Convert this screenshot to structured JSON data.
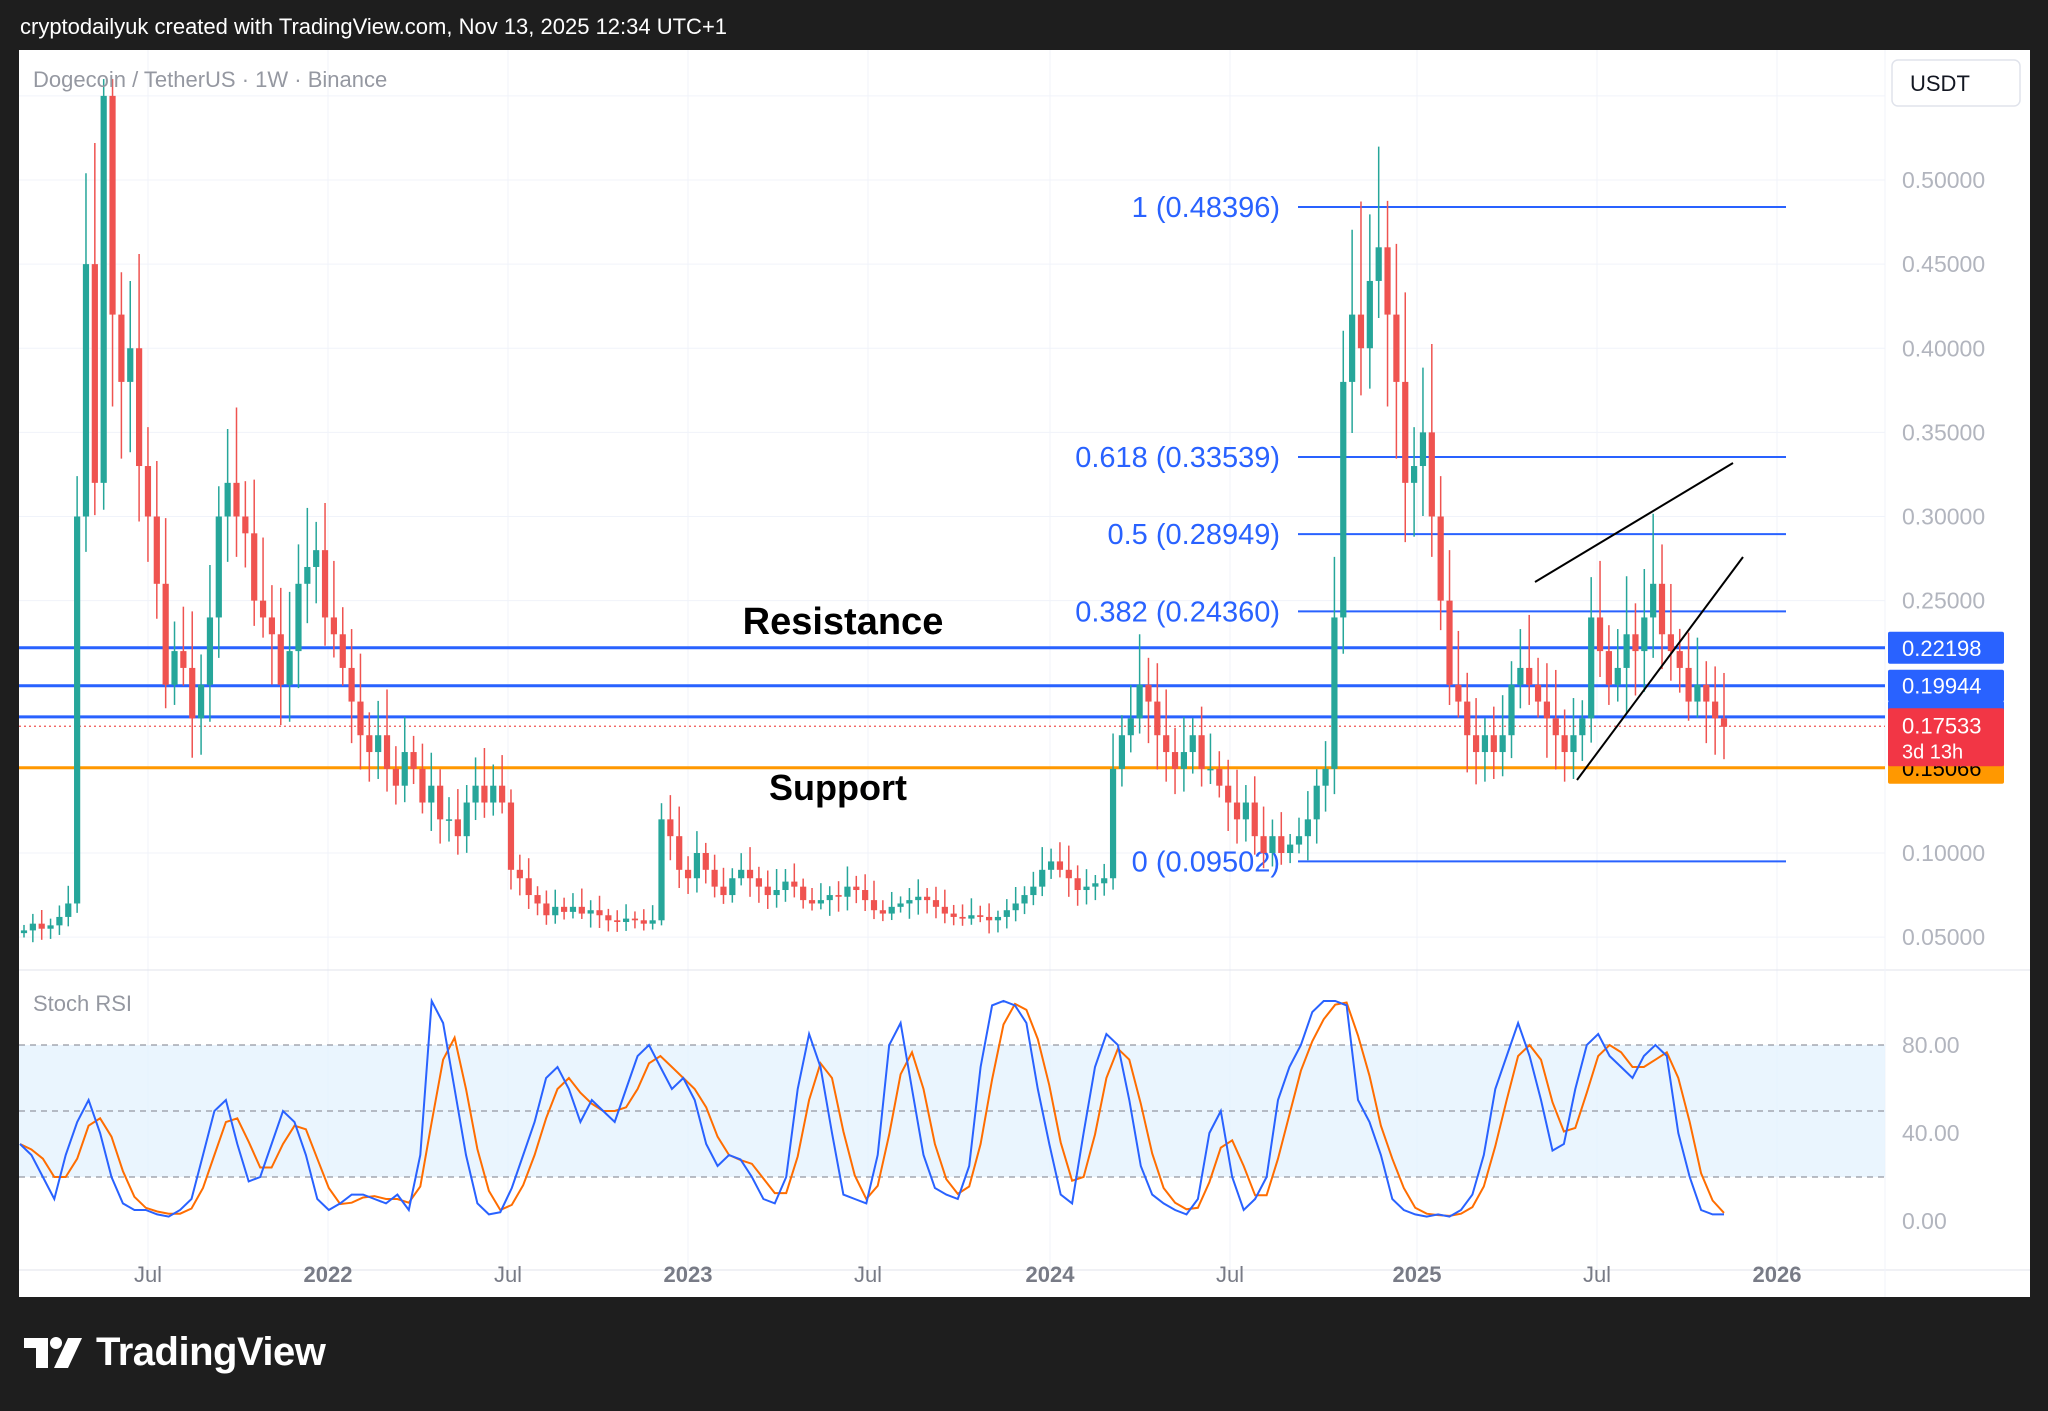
{
  "header": {
    "attribution": "cryptodailyuk created with TradingView.com, Nov 13, 2025 12:34 UTC+1"
  },
  "footer": {
    "brand": "TradingView"
  },
  "chart_data": {
    "type": "candlestick",
    "symbol_label": "Dogecoin / TetherUS · 1W · Binance",
    "currency_button": "USDT",
    "y_ticks": [
      "0.50000",
      "0.45000",
      "0.40000",
      "0.35000",
      "0.30000",
      "0.25000",
      "0.10000",
      "0.05000"
    ],
    "y_range": [
      0.045,
      0.56
    ],
    "x_ticks": [
      "Jul",
      "2022",
      "Jul",
      "2023",
      "Jul",
      "2024",
      "Jul",
      "2025",
      "Jul",
      "2026"
    ],
    "fib_levels": [
      {
        "label": "1 (0.48396)",
        "value": 0.48396
      },
      {
        "label": "0.618 (0.33539)",
        "value": 0.33539
      },
      {
        "label": "0.5 (0.28949)",
        "value": 0.28949
      },
      {
        "label": "0.382 (0.24360)",
        "value": 0.2436
      },
      {
        "label": "0 (0.09502)",
        "value": 0.09502
      }
    ],
    "horizontal_levels": [
      {
        "value": 0.22198,
        "color": "#2962ff",
        "label": "0.22198"
      },
      {
        "value": 0.19944,
        "color": "#2962ff",
        "label": "0.19944"
      },
      {
        "value": 0.1809,
        "color": "#2962ff",
        "label": "0.18090"
      },
      {
        "value": 0.15066,
        "color": "#ff9800",
        "label": "0.15066"
      }
    ],
    "last_price": {
      "value": 0.17533,
      "label": "0.17533",
      "countdown": "3d 13h"
    },
    "annotations": {
      "resistance": "Resistance",
      "support": "Support"
    },
    "indicator": {
      "name": "Stoch RSI",
      "ticks": [
        "80.00",
        "40.00",
        "0.00"
      ],
      "upper_band": 80,
      "lower_band": 20,
      "k_color": "#2962ff",
      "d_color": "#ff6d00"
    },
    "colors": {
      "up": "#26a69a",
      "down": "#ef5350",
      "fib": "#2962ff",
      "text_axis": "#b2b5be"
    },
    "price_series_weekly_close": [
      0.054,
      0.058,
      0.055,
      0.057,
      0.062,
      0.07,
      0.3,
      0.45,
      0.32,
      0.55,
      0.42,
      0.38,
      0.4,
      0.33,
      0.3,
      0.26,
      0.2,
      0.22,
      0.21,
      0.18,
      0.2,
      0.24,
      0.3,
      0.32,
      0.3,
      0.29,
      0.25,
      0.24,
      0.23,
      0.2,
      0.22,
      0.26,
      0.27,
      0.28,
      0.24,
      0.23,
      0.21,
      0.19,
      0.17,
      0.16,
      0.17,
      0.15,
      0.14,
      0.16,
      0.15,
      0.13,
      0.14,
      0.12,
      0.12,
      0.11,
      0.13,
      0.14,
      0.13,
      0.14,
      0.13,
      0.09,
      0.085,
      0.075,
      0.07,
      0.063,
      0.068,
      0.065,
      0.068,
      0.064,
      0.066,
      0.063,
      0.06,
      0.059,
      0.061,
      0.06,
      0.058,
      0.06,
      0.12,
      0.11,
      0.09,
      0.085,
      0.1,
      0.09,
      0.08,
      0.075,
      0.085,
      0.09,
      0.085,
      0.08,
      0.075,
      0.078,
      0.083,
      0.08,
      0.072,
      0.07,
      0.072,
      0.075,
      0.074,
      0.08,
      0.078,
      0.072,
      0.066,
      0.064,
      0.068,
      0.07,
      0.072,
      0.074,
      0.072,
      0.068,
      0.064,
      0.062,
      0.061,
      0.063,
      0.062,
      0.06,
      0.062,
      0.066,
      0.07,
      0.075,
      0.08,
      0.09,
      0.095,
      0.09,
      0.085,
      0.078,
      0.08,
      0.082,
      0.085,
      0.15,
      0.17,
      0.18,
      0.2,
      0.19,
      0.17,
      0.16,
      0.15,
      0.16,
      0.17,
      0.15,
      0.15,
      0.14,
      0.13,
      0.12,
      0.13,
      0.11,
      0.1,
      0.11,
      0.1,
      0.105,
      0.11,
      0.12,
      0.14,
      0.15,
      0.24,
      0.38,
      0.42,
      0.4,
      0.44,
      0.46,
      0.42,
      0.38,
      0.32,
      0.33,
      0.35,
      0.3,
      0.25,
      0.2,
      0.19,
      0.17,
      0.16,
      0.17,
      0.16,
      0.17,
      0.2,
      0.21,
      0.2,
      0.19,
      0.18,
      0.17,
      0.16,
      0.17,
      0.18,
      0.24,
      0.22,
      0.2,
      0.21,
      0.23,
      0.22,
      0.24,
      0.26,
      0.23,
      0.22,
      0.21,
      0.19,
      0.2,
      0.19,
      0.18,
      0.175
    ],
    "stoch_k": [
      35,
      30,
      20,
      10,
      30,
      45,
      55,
      40,
      20,
      8,
      5,
      5,
      3,
      2,
      5,
      10,
      30,
      50,
      55,
      35,
      18,
      20,
      35,
      50,
      45,
      30,
      10,
      5,
      8,
      12,
      12,
      10,
      8,
      12,
      5,
      30,
      100,
      90,
      60,
      30,
      8,
      3,
      4,
      15,
      30,
      45,
      65,
      70,
      60,
      45,
      55,
      50,
      45,
      60,
      75,
      80,
      70,
      60,
      65,
      55,
      35,
      25,
      30,
      28,
      20,
      10,
      8,
      20,
      60,
      85,
      70,
      40,
      12,
      10,
      8,
      30,
      80,
      90,
      60,
      30,
      15,
      12,
      10,
      25,
      70,
      98,
      100,
      98,
      90,
      60,
      35,
      12,
      8,
      40,
      70,
      85,
      80,
      55,
      25,
      12,
      8,
      5,
      3,
      10,
      40,
      50,
      20,
      5,
      10,
      20,
      55,
      70,
      80,
      95,
      100,
      100,
      98,
      55,
      45,
      30,
      10,
      5,
      3,
      2,
      3,
      2,
      5,
      12,
      30,
      60,
      75,
      90,
      75,
      55,
      32,
      35,
      60,
      80,
      85,
      75,
      70,
      65,
      75,
      80,
      75,
      40,
      20,
      5,
      3,
      3
    ]
  }
}
